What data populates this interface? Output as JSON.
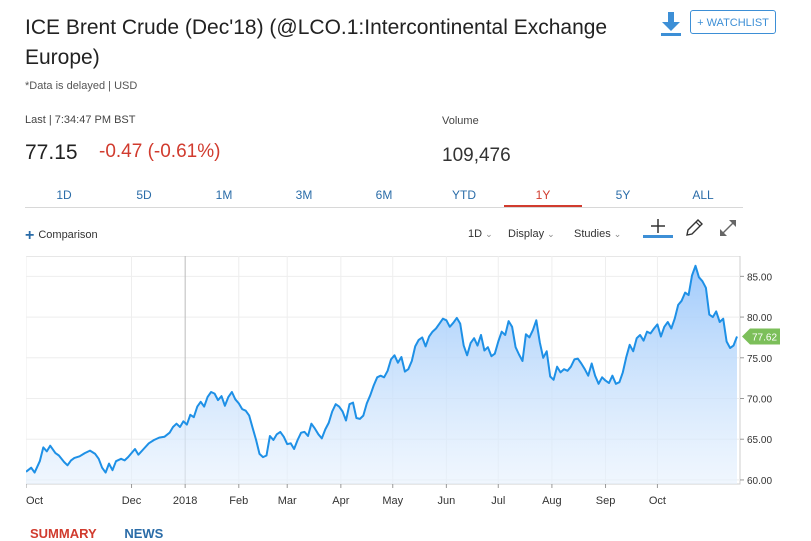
{
  "header": {
    "title": "ICE Brent Crude (Dec'18) (@LCO.1:Intercontinental Exchange Europe)",
    "delayed_note": "*Data is delayed | USD",
    "watchlist_label": "+ WATCHLIST",
    "download_icon": "download-icon"
  },
  "quote": {
    "last_label": "Last | 7:34:47 PM BST",
    "price": "77.15",
    "change": "-0.47 (-0.61%)",
    "volume_label": "Volume",
    "volume": "109,476",
    "change_color": "#d13b2e"
  },
  "ranges": [
    "1D",
    "5D",
    "1M",
    "3M",
    "6M",
    "YTD",
    "1Y",
    "5Y",
    "ALL"
  ],
  "active_range": "1Y",
  "toolbar": {
    "comparison": "Comparison",
    "interval": "1D",
    "display": "Display",
    "studies": "Studies",
    "crosshair_icon": "crosshair-icon",
    "draw_icon": "pencil-icon",
    "expand_icon": "expand-icon"
  },
  "bottom_tabs": [
    "SUMMARY",
    "NEWS"
  ],
  "chart_data": {
    "type": "area",
    "ylim": [
      59.5,
      87.5
    ],
    "yticks": [
      "85.00",
      "80.00",
      "75.00",
      "70.00",
      "65.00",
      "60.00"
    ],
    "ytick_values": [
      85,
      80,
      75,
      70,
      65,
      60
    ],
    "xticks": [
      "Oct",
      "Dec",
      "2018",
      "Feb",
      "Mar",
      "Apr",
      "May",
      "Jun",
      "Jul",
      "Aug",
      "Sep",
      "Oct"
    ],
    "xtick_days": [
      0,
      61,
      92,
      123,
      151,
      182,
      212,
      243,
      273,
      304,
      335,
      365
    ],
    "last_value_label": "77.62",
    "last_value": 77.62,
    "line_color": "#1e90e6",
    "fill_color": "#9cc8fb",
    "label_color": "#7cbf5a",
    "series": [
      {
        "values": [
          [
            0,
            61.0
          ],
          [
            3,
            61.5
          ],
          [
            5,
            60.9
          ],
          [
            8,
            62.3
          ],
          [
            10,
            64.0
          ],
          [
            12,
            63.5
          ],
          [
            14,
            64.2
          ],
          [
            17,
            63.3
          ],
          [
            19,
            63.0
          ],
          [
            22,
            62.2
          ],
          [
            24,
            61.8
          ],
          [
            26,
            62.4
          ],
          [
            28,
            62.7
          ],
          [
            31,
            62.9
          ],
          [
            34,
            63.3
          ],
          [
            37,
            63.6
          ],
          [
            40,
            63.2
          ],
          [
            42,
            62.6
          ],
          [
            44,
            61.5
          ],
          [
            46,
            60.9
          ],
          [
            48,
            62.0
          ],
          [
            50,
            61.2
          ],
          [
            52,
            62.3
          ],
          [
            55,
            62.6
          ],
          [
            57,
            62.4
          ],
          [
            59,
            62.8
          ],
          [
            61,
            63.3
          ],
          [
            63,
            63.8
          ],
          [
            65,
            63.1
          ],
          [
            68,
            63.8
          ],
          [
            71,
            64.5
          ],
          [
            74,
            64.9
          ],
          [
            77,
            65.2
          ],
          [
            80,
            65.3
          ],
          [
            83,
            65.8
          ],
          [
            85,
            66.5
          ],
          [
            87,
            66.9
          ],
          [
            89,
            66.5
          ],
          [
            91,
            67.2
          ],
          [
            93,
            66.8
          ],
          [
            95,
            68.0
          ],
          [
            97,
            67.7
          ],
          [
            99,
            69.0
          ],
          [
            101,
            69.6
          ],
          [
            103,
            69.0
          ],
          [
            105,
            70.2
          ],
          [
            107,
            70.8
          ],
          [
            109,
            70.6
          ],
          [
            111,
            69.8
          ],
          [
            113,
            70.3
          ],
          [
            115,
            69.1
          ],
          [
            117,
            70.2
          ],
          [
            119,
            70.8
          ],
          [
            121,
            69.9
          ],
          [
            123,
            69.4
          ],
          [
            125,
            68.7
          ],
          [
            127,
            68.5
          ],
          [
            129,
            67.9
          ],
          [
            131,
            66.4
          ],
          [
            133,
            64.9
          ],
          [
            135,
            63.2
          ],
          [
            137,
            62.8
          ],
          [
            139,
            63.0
          ],
          [
            141,
            65.4
          ],
          [
            143,
            64.9
          ],
          [
            145,
            65.6
          ],
          [
            147,
            65.9
          ],
          [
            149,
            65.3
          ],
          [
            151,
            64.4
          ],
          [
            153,
            64.5
          ],
          [
            155,
            63.8
          ],
          [
            157,
            64.9
          ],
          [
            159,
            65.8
          ],
          [
            161,
            65.9
          ],
          [
            163,
            65.4
          ],
          [
            165,
            66.9
          ],
          [
            167,
            66.3
          ],
          [
            169,
            65.6
          ],
          [
            171,
            65.1
          ],
          [
            173,
            66.2
          ],
          [
            175,
            67.0
          ],
          [
            177,
            68.4
          ],
          [
            179,
            69.3
          ],
          [
            181,
            69.0
          ],
          [
            183,
            68.4
          ],
          [
            185,
            67.3
          ],
          [
            187,
            69.3
          ],
          [
            189,
            69.5
          ],
          [
            191,
            67.6
          ],
          [
            193,
            67.5
          ],
          [
            195,
            67.9
          ],
          [
            197,
            69.4
          ],
          [
            199,
            70.4
          ],
          [
            201,
            71.6
          ],
          [
            203,
            72.6
          ],
          [
            205,
            72.8
          ],
          [
            207,
            72.6
          ],
          [
            209,
            73.4
          ],
          [
            211,
            74.8
          ],
          [
            213,
            75.3
          ],
          [
            215,
            74.4
          ],
          [
            217,
            75.1
          ],
          [
            219,
            73.3
          ],
          [
            221,
            73.6
          ],
          [
            223,
            74.6
          ],
          [
            225,
            76.4
          ],
          [
            227,
            77.2
          ],
          [
            229,
            77.5
          ],
          [
            231,
            76.4
          ],
          [
            233,
            77.6
          ],
          [
            235,
            78.2
          ],
          [
            237,
            78.6
          ],
          [
            239,
            79.2
          ],
          [
            241,
            79.8
          ],
          [
            243,
            79.6
          ],
          [
            245,
            78.8
          ],
          [
            247,
            79.3
          ],
          [
            249,
            79.9
          ],
          [
            251,
            79.2
          ],
          [
            253,
            76.5
          ],
          [
            255,
            75.3
          ],
          [
            257,
            76.8
          ],
          [
            259,
            77.4
          ],
          [
            261,
            76.5
          ],
          [
            263,
            77.8
          ],
          [
            265,
            75.9
          ],
          [
            267,
            76.3
          ],
          [
            269,
            75.2
          ],
          [
            271,
            75.5
          ],
          [
            273,
            77.0
          ],
          [
            275,
            78.2
          ],
          [
            277,
            77.8
          ],
          [
            279,
            79.5
          ],
          [
            281,
            78.8
          ],
          [
            283,
            76.3
          ],
          [
            285,
            75.4
          ],
          [
            287,
            74.6
          ],
          [
            289,
            77.9
          ],
          [
            291,
            77.5
          ],
          [
            293,
            78.4
          ],
          [
            295,
            79.6
          ],
          [
            297,
            76.9
          ],
          [
            299,
            75.0
          ],
          [
            301,
            75.8
          ],
          [
            303,
            72.7
          ],
          [
            305,
            72.3
          ],
          [
            307,
            73.9
          ],
          [
            309,
            73.2
          ],
          [
            311,
            73.6
          ],
          [
            313,
            73.4
          ],
          [
            315,
            73.9
          ],
          [
            317,
            74.8
          ],
          [
            319,
            74.9
          ],
          [
            321,
            74.3
          ],
          [
            323,
            73.6
          ],
          [
            325,
            72.8
          ],
          [
            327,
            74.3
          ],
          [
            329,
            72.8
          ],
          [
            331,
            71.8
          ],
          [
            333,
            72.6
          ],
          [
            335,
            72.2
          ],
          [
            337,
            71.9
          ],
          [
            339,
            72.8
          ],
          [
            341,
            71.8
          ],
          [
            343,
            72.0
          ],
          [
            345,
            73.2
          ],
          [
            347,
            75.1
          ],
          [
            349,
            76.6
          ],
          [
            351,
            75.8
          ],
          [
            353,
            77.4
          ],
          [
            355,
            77.8
          ],
          [
            357,
            77.1
          ],
          [
            359,
            78.2
          ],
          [
            361,
            78.0
          ],
          [
            363,
            78.6
          ],
          [
            365,
            79.1
          ],
          [
            367,
            77.6
          ],
          [
            369,
            78.8
          ],
          [
            371,
            79.4
          ],
          [
            373,
            78.6
          ],
          [
            375,
            79.8
          ],
          [
            377,
            81.5
          ],
          [
            379,
            82.0
          ],
          [
            381,
            83.0
          ],
          [
            383,
            82.7
          ],
          [
            385,
            85.1
          ],
          [
            387,
            86.3
          ],
          [
            389,
            84.9
          ],
          [
            391,
            84.4
          ],
          [
            393,
            83.6
          ],
          [
            395,
            80.3
          ],
          [
            397,
            80.0
          ],
          [
            399,
            80.7
          ],
          [
            401,
            79.4
          ],
          [
            403,
            79.8
          ],
          [
            405,
            77.0
          ],
          [
            407,
            76.2
          ],
          [
            409,
            76.5
          ],
          [
            411,
            77.62
          ]
        ]
      }
    ]
  }
}
